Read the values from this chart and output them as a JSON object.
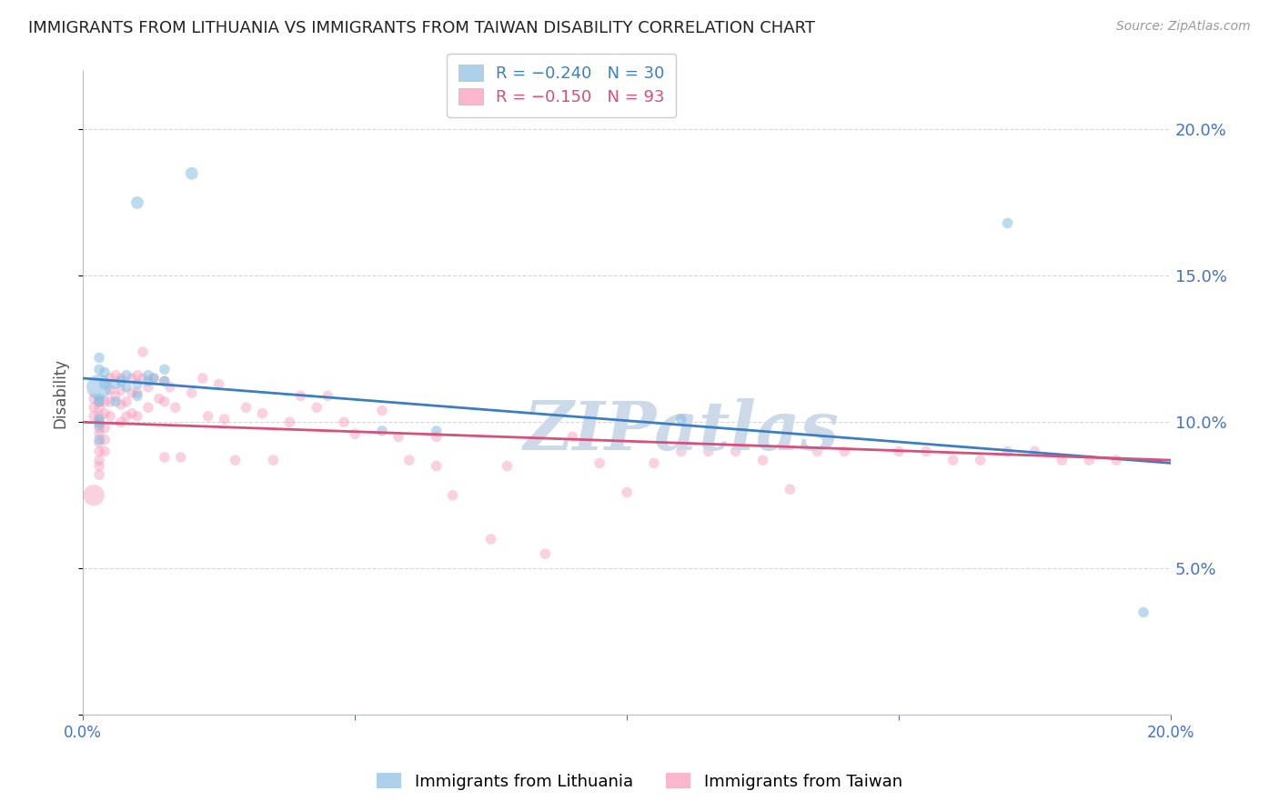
{
  "title": "IMMIGRANTS FROM LITHUANIA VS IMMIGRANTS FROM TAIWAN DISABILITY CORRELATION CHART",
  "source": "Source: ZipAtlas.com",
  "ylabel": "Disability",
  "watermark": "ZIPatlas",
  "xlim": [
    0.0,
    0.2
  ],
  "ylim": [
    0.0,
    0.22
  ],
  "legend_label_1": "Immigrants from Lithuania",
  "legend_label_2": "Immigrants from Taiwan",
  "blue_color": "#89bde0",
  "pink_color": "#f898b8",
  "trend_blue_color": "#3a7fc1",
  "trend_pink_color": "#d94f7a",
  "axis_color": "#4472C4",
  "grid_color": "#cccccc",
  "title_color": "#222222",
  "watermark_color": "#ccd9e8",
  "blue_trend_start": 0.115,
  "blue_trend_end": 0.086,
  "pink_trend_start": 0.1,
  "pink_trend_end": 0.087,
  "lithuania_x": [
    0.01,
    0.02,
    0.003,
    0.003,
    0.003,
    0.003,
    0.003,
    0.003,
    0.003,
    0.003,
    0.004,
    0.004,
    0.006,
    0.006,
    0.007,
    0.008,
    0.008,
    0.01,
    0.01,
    0.012,
    0.012,
    0.013,
    0.015,
    0.015,
    0.055,
    0.065,
    0.11,
    0.17,
    0.195,
    0.003
  ],
  "lithuania_y": [
    0.175,
    0.185,
    0.118,
    0.122,
    0.108,
    0.107,
    0.101,
    0.1,
    0.099,
    0.094,
    0.117,
    0.113,
    0.113,
    0.107,
    0.114,
    0.116,
    0.112,
    0.113,
    0.109,
    0.116,
    0.114,
    0.115,
    0.118,
    0.114,
    0.097,
    0.097,
    0.101,
    0.168,
    0.035,
    0.112
  ],
  "lithuania_sizes": [
    100,
    100,
    70,
    70,
    70,
    70,
    70,
    70,
    70,
    70,
    70,
    70,
    70,
    70,
    70,
    70,
    70,
    70,
    70,
    70,
    70,
    70,
    70,
    70,
    70,
    70,
    70,
    70,
    70,
    400
  ],
  "taiwan_x": [
    0.002,
    0.002,
    0.002,
    0.003,
    0.003,
    0.003,
    0.003,
    0.003,
    0.003,
    0.003,
    0.003,
    0.003,
    0.003,
    0.004,
    0.004,
    0.004,
    0.004,
    0.004,
    0.005,
    0.005,
    0.005,
    0.005,
    0.006,
    0.006,
    0.007,
    0.007,
    0.007,
    0.007,
    0.008,
    0.008,
    0.009,
    0.009,
    0.009,
    0.01,
    0.01,
    0.01,
    0.011,
    0.011,
    0.012,
    0.012,
    0.013,
    0.014,
    0.015,
    0.015,
    0.015,
    0.016,
    0.017,
    0.018,
    0.02,
    0.022,
    0.023,
    0.025,
    0.026,
    0.028,
    0.03,
    0.033,
    0.035,
    0.038,
    0.04,
    0.043,
    0.045,
    0.048,
    0.05,
    0.055,
    0.058,
    0.06,
    0.065,
    0.065,
    0.068,
    0.075,
    0.078,
    0.085,
    0.09,
    0.095,
    0.1,
    0.105,
    0.11,
    0.115,
    0.12,
    0.125,
    0.13,
    0.135,
    0.14,
    0.15,
    0.155,
    0.16,
    0.165,
    0.17,
    0.175,
    0.18,
    0.185,
    0.19,
    0.002
  ],
  "taiwan_y": [
    0.108,
    0.105,
    0.102,
    0.107,
    0.105,
    0.102,
    0.098,
    0.096,
    0.093,
    0.09,
    0.087,
    0.085,
    0.082,
    0.107,
    0.103,
    0.098,
    0.094,
    0.09,
    0.115,
    0.111,
    0.107,
    0.102,
    0.116,
    0.109,
    0.115,
    0.111,
    0.106,
    0.1,
    0.107,
    0.102,
    0.115,
    0.11,
    0.103,
    0.116,
    0.11,
    0.102,
    0.124,
    0.115,
    0.112,
    0.105,
    0.115,
    0.108,
    0.114,
    0.107,
    0.088,
    0.112,
    0.105,
    0.088,
    0.11,
    0.115,
    0.102,
    0.113,
    0.101,
    0.087,
    0.105,
    0.103,
    0.087,
    0.1,
    0.109,
    0.105,
    0.109,
    0.1,
    0.096,
    0.104,
    0.095,
    0.087,
    0.095,
    0.085,
    0.075,
    0.06,
    0.085,
    0.055,
    0.095,
    0.086,
    0.076,
    0.086,
    0.09,
    0.09,
    0.09,
    0.087,
    0.077,
    0.09,
    0.09,
    0.09,
    0.09,
    0.087,
    0.087,
    0.09,
    0.09,
    0.087,
    0.087,
    0.087,
    0.075
  ],
  "taiwan_sizes": [
    70,
    70,
    70,
    70,
    70,
    70,
    70,
    70,
    70,
    70,
    70,
    70,
    70,
    70,
    70,
    70,
    70,
    70,
    70,
    70,
    70,
    70,
    70,
    70,
    70,
    70,
    70,
    70,
    70,
    70,
    70,
    70,
    70,
    70,
    70,
    70,
    70,
    70,
    70,
    70,
    70,
    70,
    70,
    70,
    70,
    70,
    70,
    70,
    70,
    70,
    70,
    70,
    70,
    70,
    70,
    70,
    70,
    70,
    70,
    70,
    70,
    70,
    70,
    70,
    70,
    70,
    70,
    70,
    70,
    70,
    70,
    70,
    70,
    70,
    70,
    70,
    70,
    70,
    70,
    70,
    70,
    70,
    70,
    70,
    70,
    70,
    70,
    70,
    70,
    70,
    70,
    70,
    280
  ]
}
